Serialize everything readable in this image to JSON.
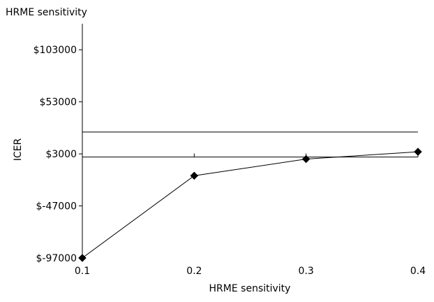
{
  "chart_data": {
    "type": "line",
    "title": "HRME sensitivity",
    "xlabel": "HRME sensitivity",
    "ylabel": "ICER",
    "x": [
      0.1,
      0.2,
      0.3,
      0.4
    ],
    "series": [
      {
        "values": [
          -97000,
          -18000,
          -2000,
          5000
        ]
      }
    ],
    "xlim": [
      0.1,
      0.4
    ],
    "ylim": [
      -97000,
      128000
    ],
    "x_ticks": [
      0.1,
      0.2,
      0.3,
      0.4
    ],
    "x_tick_labels": [
      "0.1",
      "0.2",
      "0.3",
      "0.4"
    ],
    "y_ticks": [
      -97000,
      -47000,
      3000,
      53000,
      103000
    ],
    "y_tick_labels": [
      "$-97000",
      "$-47000",
      "$3000",
      "$53000",
      "$103000"
    ],
    "reference_lines": [
      {
        "y": 0
      },
      {
        "y": 24000
      }
    ],
    "marker": "diamond",
    "grid": false,
    "colors": {
      "line": "#000000",
      "axis": "#000000",
      "background": "#ffffff"
    }
  }
}
